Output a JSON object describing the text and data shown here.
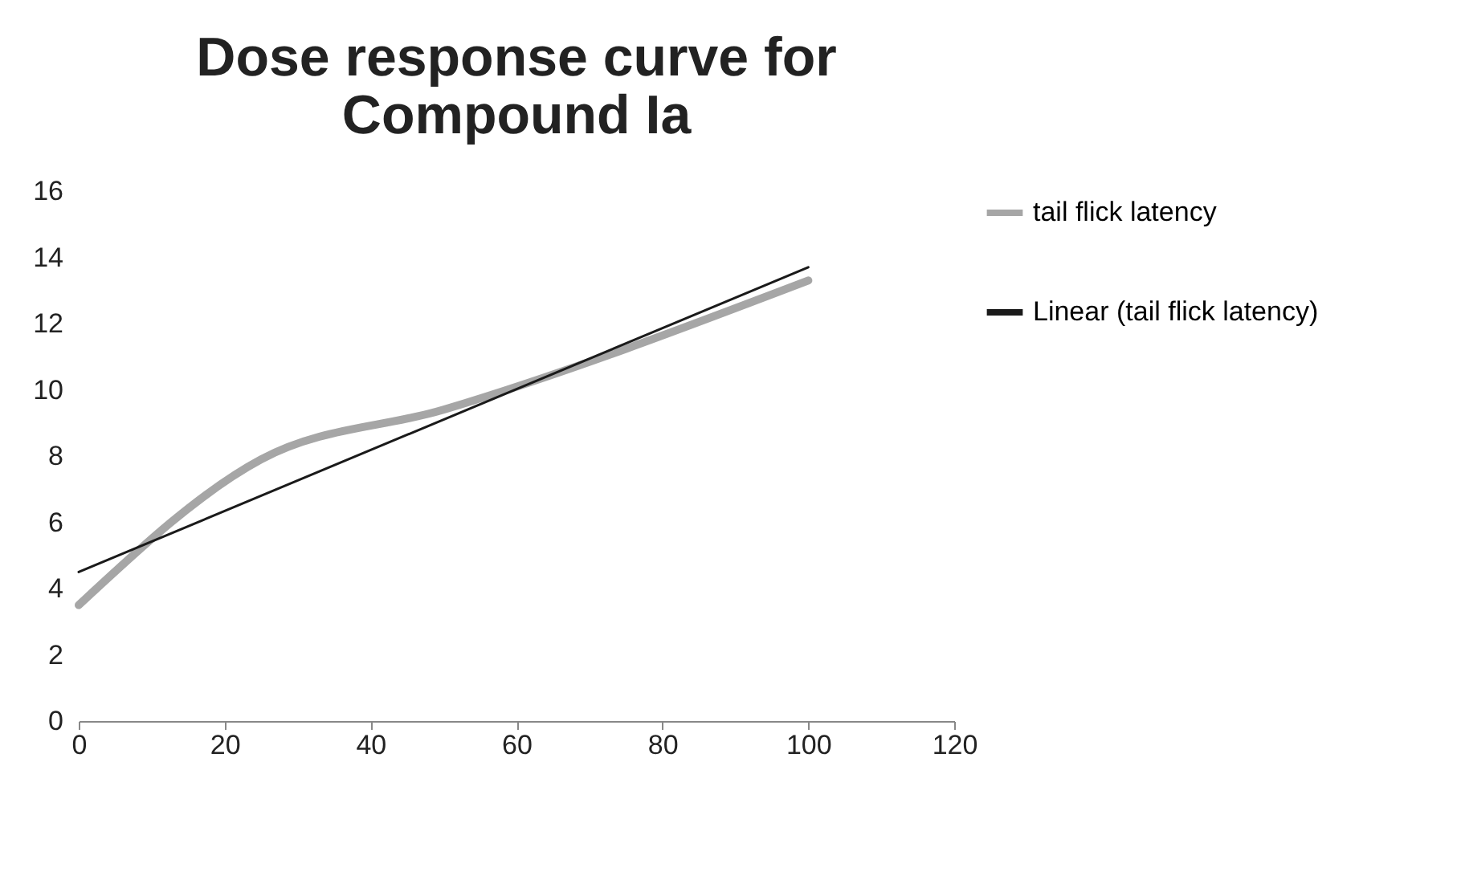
{
  "chart_data": {
    "type": "line",
    "title": "Dose response curve for Compound Ia",
    "x": [
      0,
      25,
      50,
      100
    ],
    "series": [
      {
        "name": "tail flick latency",
        "color": "#a6a6a6",
        "values": [
          3.5,
          7.9,
          9.4,
          13.3
        ]
      },
      {
        "name": "Linear (tail flick latency)",
        "color": "#1a1a1a",
        "type": "line",
        "x": [
          0,
          100
        ],
        "values": [
          4.5,
          13.7
        ]
      }
    ],
    "xlim": [
      0,
      120
    ],
    "xticks": [
      0,
      20,
      40,
      60,
      80,
      100,
      120
    ],
    "ylim": [
      0,
      16
    ],
    "yticks": [
      0,
      2,
      4,
      6,
      8,
      10,
      12,
      14,
      16
    ],
    "grid": false,
    "legend": "right"
  }
}
